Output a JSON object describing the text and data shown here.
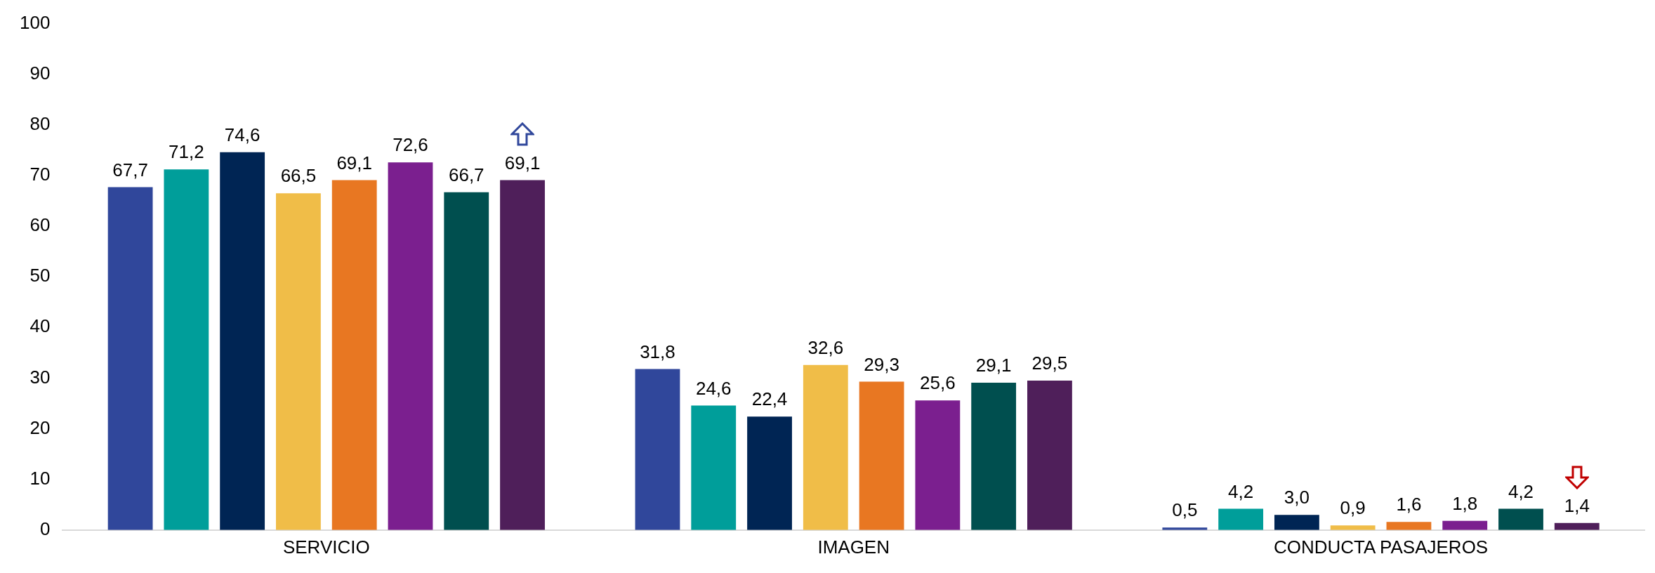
{
  "chart_data": {
    "type": "bar",
    "categories": [
      "SERVICIO",
      "IMAGEN",
      "CONDUCTA PASAJEROS"
    ],
    "ylim": [
      0,
      100
    ],
    "yticks": [
      0,
      10,
      20,
      30,
      40,
      50,
      60,
      70,
      80,
      90,
      100
    ],
    "grid": false,
    "legend": false,
    "series": [
      {
        "color": "#30479b",
        "values": [
          67.7,
          31.8,
          0.5
        ],
        "value_labels": [
          "67,7",
          "31,8",
          "0,5"
        ]
      },
      {
        "color": "#009e9a",
        "values": [
          71.2,
          24.6,
          4.2
        ],
        "value_labels": [
          "71,2",
          "24,6",
          "4,2"
        ]
      },
      {
        "color": "#002554",
        "values": [
          74.6,
          22.4,
          3.0
        ],
        "value_labels": [
          "74,6",
          "22,4",
          "3,0"
        ]
      },
      {
        "color": "#f0bd48",
        "values": [
          66.5,
          32.6,
          0.9
        ],
        "value_labels": [
          "66,5",
          "32,6",
          "0,9"
        ]
      },
      {
        "color": "#e87722",
        "values": [
          69.1,
          29.3,
          1.6
        ],
        "value_labels": [
          "69,1",
          "29,3",
          "1,6"
        ]
      },
      {
        "color": "#7b1f8f",
        "values": [
          72.6,
          25.6,
          1.8
        ],
        "value_labels": [
          "72,6",
          "25,6",
          "1,8"
        ]
      },
      {
        "color": "#004f4f",
        "values": [
          66.7,
          29.1,
          4.2
        ],
        "value_labels": [
          "66,7",
          "29,1",
          "4,2"
        ]
      },
      {
        "color": "#4f1f5a",
        "values": [
          69.1,
          29.5,
          1.4
        ],
        "value_labels": [
          "69,1",
          "29,5",
          "1,4"
        ]
      }
    ]
  }
}
